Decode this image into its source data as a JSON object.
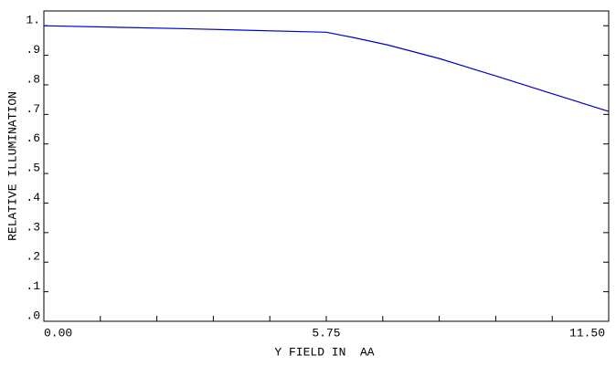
{
  "chart_data": {
    "type": "line",
    "xlabel": "Y FIELD IN  AA",
    "ylabel": "RELATIVE ILLUMINATION",
    "x": [
      0,
      2.875,
      5.75,
      6.3,
      7.0,
      8.05,
      9.2,
      10.35,
      11.5
    ],
    "series": [
      {
        "color": "#0000cc",
        "values": [
          1.0,
          0.99,
          0.978,
          0.96,
          0.935,
          0.889,
          0.83,
          0.77,
          0.71
        ]
      }
    ],
    "xlim": [
      0,
      11.5
    ],
    "xticks": [
      {
        "value": 0,
        "label": "0.00"
      },
      {
        "value": 5.75,
        "label": "5.75"
      },
      {
        "value": 11.5,
        "label": "11.50"
      }
    ],
    "xminorticks": [
      1.15,
      2.3,
      3.45,
      4.6,
      6.9,
      8.05,
      9.2,
      10.35
    ],
    "ylim": [
      0,
      1.05
    ],
    "yticks": [
      {
        "value": 0,
        "label": ".0"
      },
      {
        "value": 0.1,
        "label": ".1"
      },
      {
        "value": 0.2,
        "label": ".2"
      },
      {
        "value": 0.3,
        "label": ".3"
      },
      {
        "value": 0.4,
        "label": ".4"
      },
      {
        "value": 0.5,
        "label": ".5"
      },
      {
        "value": 0.6,
        "label": ".6"
      },
      {
        "value": 0.7,
        "label": ".7"
      },
      {
        "value": 0.8,
        "label": ".8"
      },
      {
        "value": 0.9,
        "label": ".9"
      },
      {
        "value": 1.0,
        "label": "1."
      }
    ]
  }
}
